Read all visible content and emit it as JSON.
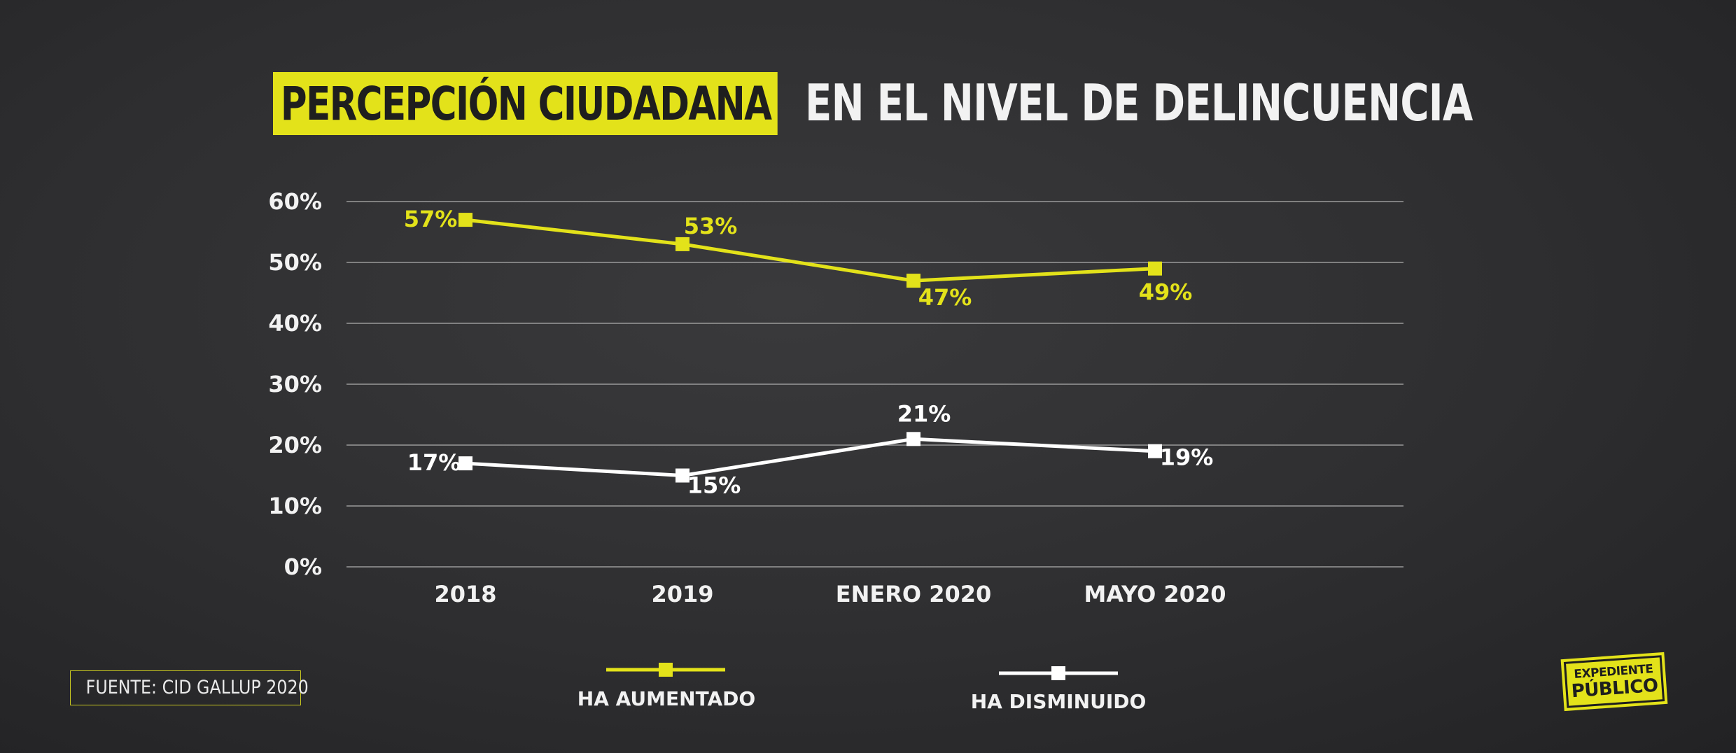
{
  "title": {
    "highlight": "PERCEPCIÓN CIUDADANA",
    "rest": "EN EL NIVEL DE DELINCUENCIA"
  },
  "source": "FUENTE: CID GALLUP 2020",
  "logo": {
    "line1": "EXPEDIENTE",
    "line2": "PÚBLICO"
  },
  "colors": {
    "aumentado": "#e3e21a",
    "disminuido": "#ffffff",
    "grid": "#9a9a9a",
    "background": "#2f2f31"
  },
  "chart_data": {
    "type": "line",
    "categories": [
      "2018",
      "2019",
      "ENERO 2020",
      "MAYO 2020"
    ],
    "yticks": [
      "0%",
      "10%",
      "20%",
      "30%",
      "40%",
      "50%",
      "60%"
    ],
    "ylim": [
      0,
      60
    ],
    "grid": true,
    "legend_position": "bottom",
    "series": [
      {
        "name": "HA AUMENTADO",
        "values": [
          57,
          53,
          47,
          49
        ],
        "labels": [
          "57%",
          "53%",
          "47%",
          "49%"
        ]
      },
      {
        "name": "HA DISMINUIDO",
        "values": [
          17,
          15,
          21,
          19
        ],
        "labels": [
          "17%",
          "15%",
          "21%",
          "19%"
        ]
      }
    ]
  }
}
